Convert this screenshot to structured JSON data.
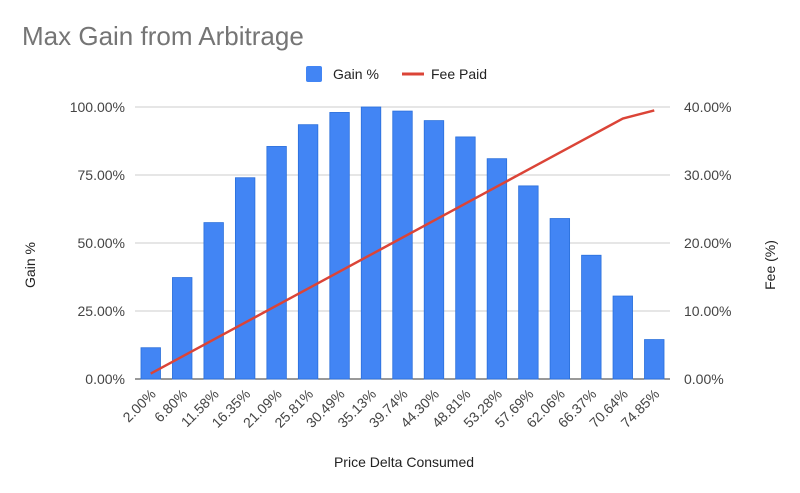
{
  "chart_data": {
    "type": "bar",
    "title": "Max Gain from Arbitrage",
    "xlabel": "Price Delta Consumed",
    "ylabel": "Gain %",
    "y2label": "Fee (%)",
    "categories": [
      "2.00%",
      "6.80%",
      "11.58%",
      "16.35%",
      "21.09%",
      "25.81%",
      "30.49%",
      "35.13%",
      "39.74%",
      "44.30%",
      "48.81%",
      "53.28%",
      "57.69%",
      "62.06%",
      "66.37%",
      "70.64%",
      "74.85%"
    ],
    "series": [
      {
        "name": "Gain %",
        "type": "bar",
        "axis": "left",
        "color": "#4285f4",
        "values": [
          11.5,
          37.3,
          57.5,
          74.0,
          85.5,
          93.5,
          98.0,
          100.0,
          98.5,
          95.0,
          89.0,
          81.0,
          71.0,
          59.0,
          45.5,
          30.5,
          14.5
        ]
      },
      {
        "name": "Fee Paid",
        "type": "line",
        "axis": "right",
        "color": "#db4437",
        "values": [
          0.8,
          3.3,
          5.8,
          8.3,
          10.8,
          13.3,
          15.8,
          18.3,
          20.8,
          23.3,
          25.8,
          28.3,
          30.8,
          33.3,
          35.8,
          38.3,
          39.5
        ]
      }
    ],
    "ylim": [
      0,
      100
    ],
    "y2lim": [
      0,
      40
    ],
    "y_ticks": [
      "0.00%",
      "25.00%",
      "50.00%",
      "75.00%",
      "100.00%"
    ],
    "y2_ticks": [
      "0.00%",
      "10.00%",
      "20.00%",
      "30.00%",
      "40.00%"
    ],
    "legend_position": "top-center",
    "grid": true
  }
}
